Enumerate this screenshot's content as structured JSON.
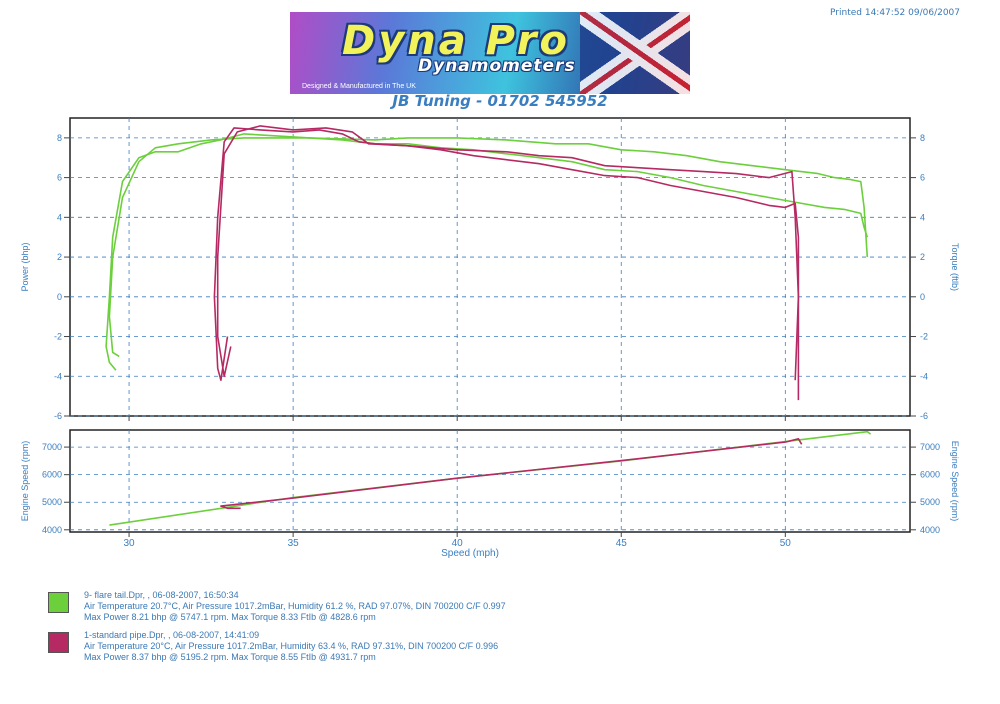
{
  "header": {
    "printed": "Printed 14:47:52  09/06/2007",
    "logo_brand": "Dyna Pro",
    "logo_sub": "Dynamometers",
    "logo_tagline": "Designed & Manufactured in The UK",
    "tuning": "JB Tuning - 01702 545952"
  },
  "chart_data": [
    {
      "type": "line",
      "panel": "power-torque",
      "ylabel": "Power (bhp)",
      "y2label": "Torque (ftlb)",
      "ylim": [
        -6,
        9
      ],
      "y_ticks": [
        "8",
        "6",
        "4",
        "2",
        "0",
        "-2",
        "-4",
        "-6"
      ],
      "y2_ticks": [
        "8",
        "6",
        "4",
        "2",
        "0",
        "-2",
        "-4",
        "-6"
      ],
      "xlim": [
        28.2,
        53.8
      ],
      "grid": true,
      "series": [
        {
          "name": "9- flare tail.Dpr",
          "color": "#6ccf3c",
          "measure": "power",
          "points": [
            [
              29.6,
              -3.7
            ],
            [
              29.4,
              -3.3
            ],
            [
              29.3,
              -2.5
            ],
            [
              29.4,
              0.0
            ],
            [
              29.5,
              3.0
            ],
            [
              29.8,
              5.8
            ],
            [
              30.3,
              7.0
            ],
            [
              30.8,
              7.3
            ],
            [
              31.5,
              7.3
            ],
            [
              32.2,
              7.7
            ],
            [
              32.8,
              7.9
            ],
            [
              33.5,
              8.2
            ],
            [
              34.5,
              8.1
            ],
            [
              35.5,
              8.0
            ],
            [
              36.5,
              7.9
            ],
            [
              37.5,
              7.7
            ],
            [
              38.5,
              7.7
            ],
            [
              39.5,
              7.5
            ],
            [
              40.5,
              7.4
            ],
            [
              41.5,
              7.2
            ],
            [
              42.5,
              7.0
            ],
            [
              43.5,
              6.8
            ],
            [
              44.5,
              6.4
            ],
            [
              45.5,
              6.3
            ],
            [
              46.5,
              6.0
            ],
            [
              47.5,
              5.6
            ],
            [
              48.5,
              5.3
            ],
            [
              49.5,
              5.0
            ],
            [
              50.5,
              4.7
            ],
            [
              51.2,
              4.5
            ],
            [
              51.8,
              4.4
            ],
            [
              52.3,
              4.2
            ],
            [
              52.4,
              3.5
            ],
            [
              52.5,
              3.0
            ]
          ]
        },
        {
          "name": "9- flare tail.Dpr",
          "color": "#6ccf3c",
          "measure": "torque",
          "points": [
            [
              29.7,
              -3.0
            ],
            [
              29.5,
              -2.8
            ],
            [
              29.4,
              -1.0
            ],
            [
              29.5,
              2.0
            ],
            [
              29.8,
              5.0
            ],
            [
              30.3,
              6.8
            ],
            [
              30.8,
              7.5
            ],
            [
              31.5,
              7.7
            ],
            [
              32.5,
              7.9
            ],
            [
              33.5,
              8.0
            ],
            [
              35.5,
              8.0
            ],
            [
              37.5,
              7.9
            ],
            [
              38.5,
              8.0
            ],
            [
              40.0,
              8.0
            ],
            [
              41.5,
              7.9
            ],
            [
              43.0,
              7.7
            ],
            [
              44.0,
              7.7
            ],
            [
              45.0,
              7.4
            ],
            [
              46.0,
              7.3
            ],
            [
              47.0,
              7.1
            ],
            [
              48.0,
              6.8
            ],
            [
              49.0,
              6.6
            ],
            [
              50.0,
              6.4
            ],
            [
              51.0,
              6.2
            ],
            [
              51.5,
              6.0
            ],
            [
              52.0,
              5.9
            ],
            [
              52.3,
              5.8
            ],
            [
              52.4,
              4.5
            ],
            [
              52.5,
              2.0
            ]
          ]
        },
        {
          "name": "1-standard pipe.Dpr",
          "color": "#b52a62",
          "measure": "power",
          "points": [
            [
              33.0,
              -2.0
            ],
            [
              32.8,
              -4.2
            ],
            [
              32.7,
              -3.6
            ],
            [
              32.6,
              0.0
            ],
            [
              32.7,
              4.0
            ],
            [
              32.9,
              7.8
            ],
            [
              33.2,
              8.5
            ],
            [
              34.0,
              8.4
            ],
            [
              35.0,
              8.3
            ],
            [
              35.8,
              8.4
            ],
            [
              36.5,
              8.2
            ],
            [
              37.0,
              7.8
            ],
            [
              37.5,
              7.7
            ],
            [
              38.5,
              7.6
            ],
            [
              39.5,
              7.4
            ],
            [
              40.5,
              7.1
            ],
            [
              41.5,
              6.9
            ],
            [
              42.5,
              6.7
            ],
            [
              43.5,
              6.4
            ],
            [
              44.5,
              6.1
            ],
            [
              45.5,
              6.0
            ],
            [
              46.5,
              5.6
            ],
            [
              47.5,
              5.3
            ],
            [
              48.5,
              5.0
            ],
            [
              49.5,
              4.6
            ],
            [
              50.0,
              4.5
            ],
            [
              50.3,
              4.7
            ],
            [
              50.4,
              3.0
            ],
            [
              50.4,
              0.0
            ],
            [
              50.3,
              -4.2
            ]
          ]
        },
        {
          "name": "1-standard pipe.Dpr",
          "color": "#b52a62",
          "measure": "torque",
          "points": [
            [
              33.1,
              -2.5
            ],
            [
              32.9,
              -4.0
            ],
            [
              32.7,
              -2.0
            ],
            [
              32.7,
              2.0
            ],
            [
              32.9,
              7.2
            ],
            [
              33.3,
              8.3
            ],
            [
              34.0,
              8.6
            ],
            [
              35.0,
              8.4
            ],
            [
              36.0,
              8.5
            ],
            [
              36.8,
              8.3
            ],
            [
              37.3,
              7.7
            ],
            [
              38.5,
              7.6
            ],
            [
              40.0,
              7.4
            ],
            [
              41.5,
              7.3
            ],
            [
              42.5,
              7.1
            ],
            [
              43.5,
              7.0
            ],
            [
              44.5,
              6.6
            ],
            [
              45.5,
              6.5
            ],
            [
              46.5,
              6.4
            ],
            [
              47.5,
              6.3
            ],
            [
              48.5,
              6.2
            ],
            [
              49.5,
              6.0
            ],
            [
              50.2,
              6.3
            ],
            [
              50.3,
              4.0
            ],
            [
              50.4,
              0.0
            ],
            [
              50.4,
              -5.2
            ]
          ]
        }
      ]
    },
    {
      "type": "line",
      "panel": "engine-speed",
      "ylabel": "Engine Speed (rpm)",
      "y2label": "Engine Speed (rpm)",
      "xlabel": "Speed (mph)",
      "ylim": [
        3920,
        7620
      ],
      "x_ticks": [
        "30",
        "35",
        "40",
        "45",
        "50"
      ],
      "y_ticks": [
        "7000",
        "6000",
        "5000",
        "4000"
      ],
      "y2_ticks": [
        "7000",
        "6000",
        "5000",
        "4000"
      ],
      "xlim": [
        28.2,
        53.8
      ],
      "grid": true,
      "series": [
        {
          "name": "9- flare tail.Dpr",
          "color": "#6ccf3c",
          "points": [
            [
              29.4,
              4170
            ],
            [
              35.0,
              5170
            ],
            [
              40.0,
              5870
            ],
            [
              45.0,
              6500
            ],
            [
              50.0,
              7200
            ],
            [
              52.5,
              7560
            ],
            [
              52.6,
              7470
            ]
          ]
        },
        {
          "name": "1-standard pipe.Dpr",
          "color": "#b52a62",
          "points": [
            [
              33.4,
              4780
            ],
            [
              33.0,
              4780
            ],
            [
              32.8,
              4860
            ],
            [
              35.0,
              5150
            ],
            [
              40.0,
              5870
            ],
            [
              45.0,
              6510
            ],
            [
              50.0,
              7180
            ],
            [
              50.4,
              7300
            ],
            [
              50.5,
              7100
            ]
          ]
        }
      ]
    }
  ],
  "legend": [
    {
      "color": "#6ccf3c",
      "line1": "9- flare tail.Dpr,   ,   06-08-2007,   16:50:34",
      "line2": "Air Temperature 20.7°C,   Air Pressure 1017.2mBar,   Humidity 61.2 %,   RAD 97.07%,   DIN 700200  C/F 0.997",
      "line3": "Max Power 8.21 bhp @ 5747.1 rpm.   Max Torque 8.33 FtIb @ 4828.6 rpm"
    },
    {
      "color": "#b52a62",
      "line1": "1-standard pipe.Dpr,   ,   06-08-2007,   14:41:09",
      "line2": "Air Temperature 20°C,   Air Pressure 1017.2mBar,   Humidity 63.4 %,   RAD 97.31%,   DIN 700200  C/F 0.996",
      "line3": "Max Power 8.37 bhp @ 5195.2 rpm.   Max Torque 8.55 FtIb @ 4931.7 rpm"
    }
  ]
}
